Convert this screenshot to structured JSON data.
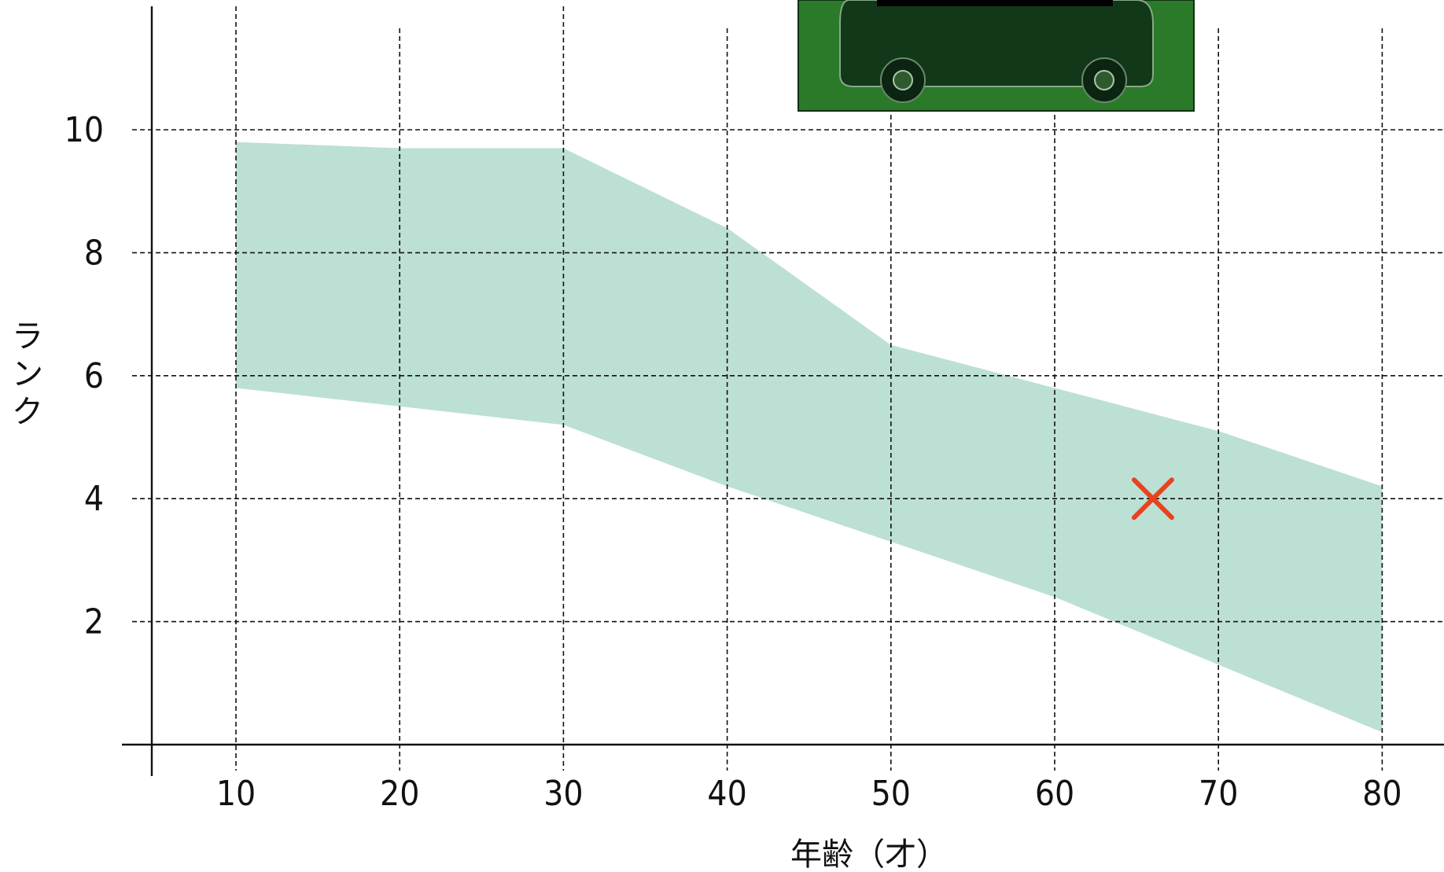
{
  "chart_data": {
    "type": "area",
    "xlabel": "年齢（才）",
    "ylabel": "ランク",
    "x_ticks": [
      10,
      20,
      30,
      40,
      50,
      60,
      70,
      80
    ],
    "y_ticks": [
      2,
      4,
      6,
      8,
      10
    ],
    "xlim": [
      5,
      83
    ],
    "ylim": [
      0,
      12.5
    ],
    "grid": true,
    "band": {
      "x": [
        10,
        20,
        30,
        40,
        50,
        60,
        70,
        80
      ],
      "upper": [
        9.8,
        9.7,
        9.7,
        8.4,
        6.5,
        5.8,
        5.1,
        4.2
      ],
      "lower": [
        5.8,
        5.5,
        5.2,
        4.2,
        3.3,
        2.4,
        1.3,
        0.2
      ]
    },
    "marker": {
      "x": 66,
      "y": 4.0,
      "symbol": "×"
    },
    "band_color": "#bde0d4",
    "marker_color": "#e8431c",
    "image_color": "#2a7a2a"
  }
}
